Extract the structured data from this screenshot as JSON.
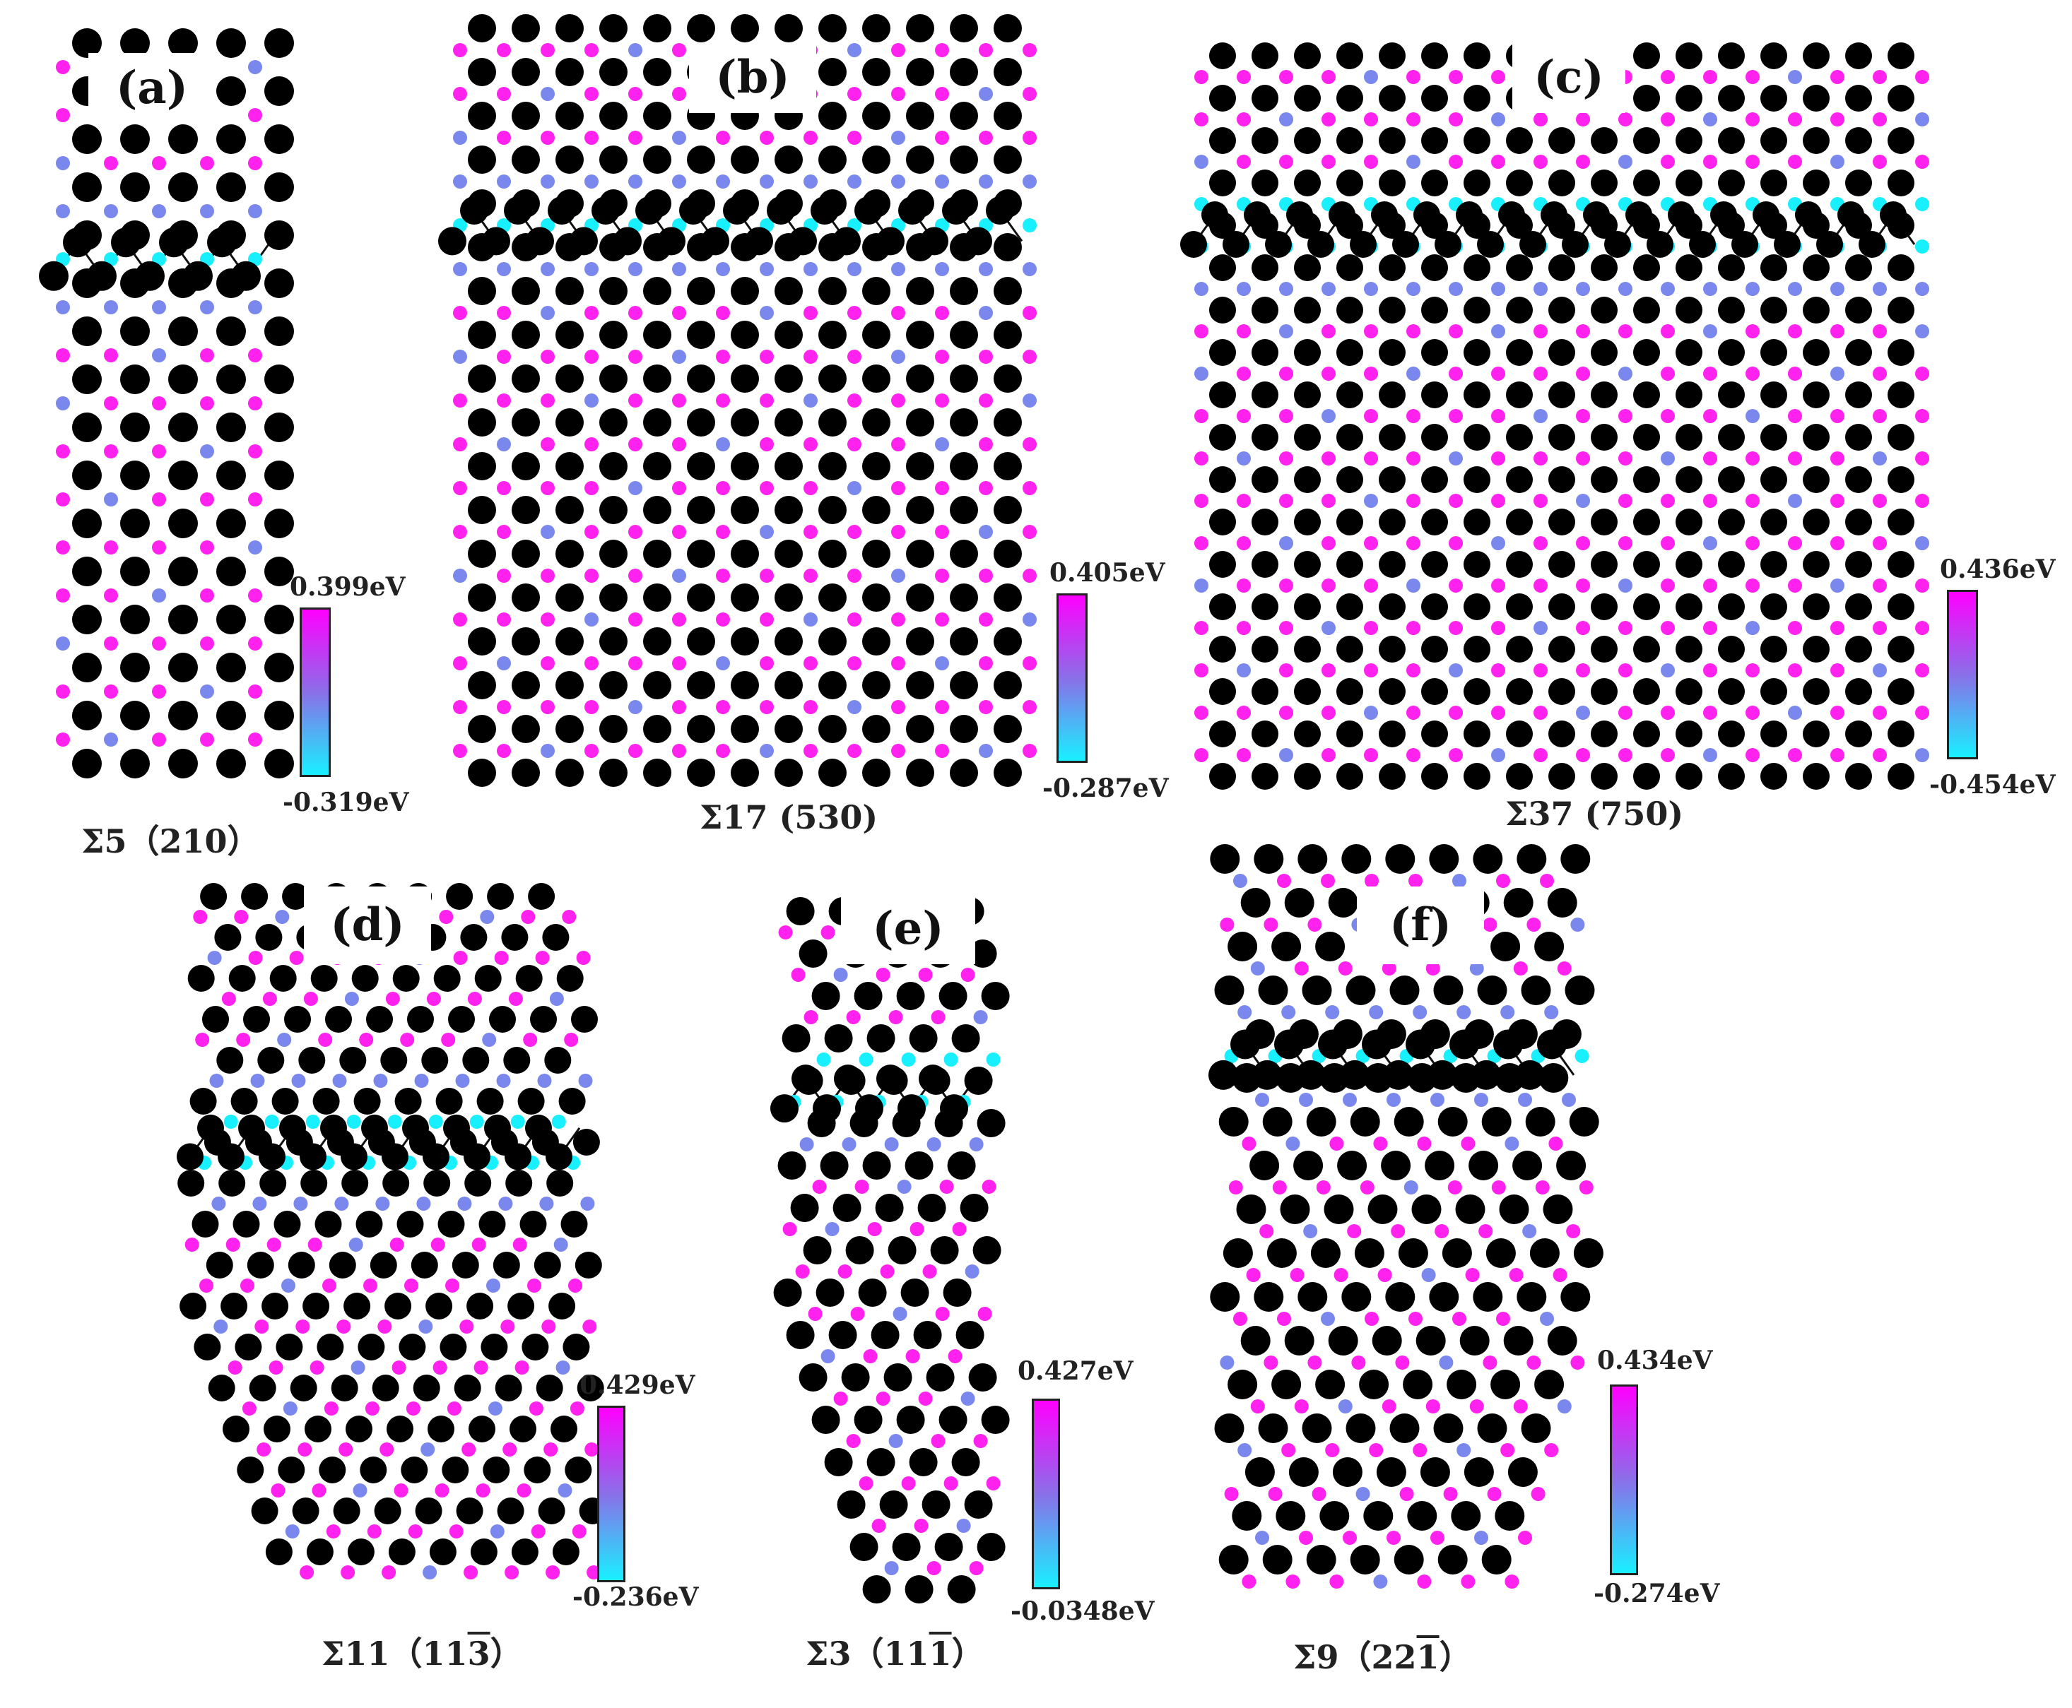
{
  "figure": {
    "background": "#ffffff",
    "atom_colors": {
      "large": "#000000",
      "max": "#ff22ee",
      "mid": "#7a88ee",
      "min": "#19f0ff"
    },
    "panels": [
      {
        "label": "(a)",
        "caption_sigma": "Σ5",
        "caption_plane": "（210）",
        "caption_bar": "",
        "caption_tail": "",
        "colorbar": {
          "max": "0.399eV",
          "min": "-0.319eV"
        }
      },
      {
        "label": "(b)",
        "caption_sigma": "Σ17",
        "caption_plane": " (530)",
        "caption_bar": "",
        "caption_tail": "",
        "colorbar": {
          "max": "0.405eV",
          "min": "-0.287eV"
        }
      },
      {
        "label": "(c)",
        "caption_sigma": "Σ37",
        "caption_plane": " (750)",
        "caption_bar": "",
        "caption_tail": "",
        "colorbar": {
          "max": "0.436eV",
          "min": "-0.454eV"
        }
      },
      {
        "label": "(d)",
        "caption_sigma": "Σ11",
        "caption_plane": "（11",
        "caption_bar": "3",
        "caption_tail": "）",
        "colorbar": {
          "max": "0.429eV",
          "min": "-0.236eV"
        }
      },
      {
        "label": "(e)",
        "caption_sigma": "Σ3",
        "caption_plane": "（11",
        "caption_bar": "1",
        "caption_tail": "）",
        "colorbar": {
          "max": "0.427eV",
          "min": "-0.0348eV"
        }
      },
      {
        "label": "(f)",
        "caption_sigma": "Σ9",
        "caption_plane": "（22",
        "caption_bar": "1",
        "caption_tail": "）",
        "colorbar": {
          "max": "0.434eV",
          "min": "-0.274eV"
        }
      }
    ]
  }
}
